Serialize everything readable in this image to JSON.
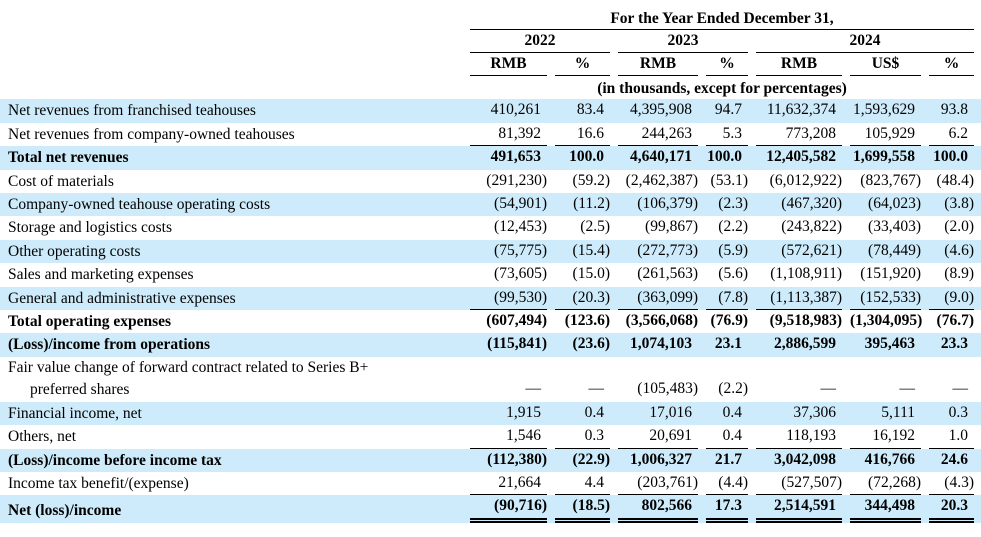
{
  "header": {
    "title": "For the Year Ended December 31,",
    "note": "(in thousands, except for percentages)",
    "year_groups": [
      {
        "label": "2022",
        "columns": [
          "RMB",
          "%"
        ]
      },
      {
        "label": "2023",
        "columns": [
          "RMB",
          "%"
        ]
      },
      {
        "label": "2024",
        "columns": [
          "RMB",
          "US$",
          "%"
        ]
      }
    ],
    "column_headers": [
      "RMB",
      "%",
      "RMB",
      "%",
      "RMB",
      "US$",
      "%"
    ]
  },
  "colors": {
    "stripe_blue": "#CDEBFA",
    "text": "#000000",
    "rule": "#000000"
  },
  "table": {
    "rows": [
      {
        "label": "Net revenues from franchised teahouses",
        "bold": false,
        "stripe": true,
        "underline": "none",
        "values": [
          "410,261",
          "83.4",
          "4,395,908",
          "94.7",
          "11,632,374",
          "1,593,629",
          "93.8"
        ]
      },
      {
        "label": "Net revenues from company-owned teahouses",
        "bold": false,
        "stripe": false,
        "underline": "single",
        "values": [
          "81,392",
          "16.6",
          "244,263",
          "5.3",
          "773,208",
          "105,929",
          "6.2"
        ]
      },
      {
        "label": "Total net revenues",
        "bold": true,
        "stripe": true,
        "underline": "none",
        "values": [
          "491,653",
          "100.0",
          "4,640,171",
          "100.0",
          "12,405,582",
          "1,699,558",
          "100.0"
        ]
      },
      {
        "label": "Cost of materials",
        "bold": false,
        "stripe": false,
        "underline": "none",
        "values": [
          "(291,230)",
          "(59.2)",
          "(2,462,387)",
          "(53.1)",
          "(6,012,922)",
          "(823,767)",
          "(48.4)"
        ]
      },
      {
        "label": "Company-owned teahouse operating costs",
        "bold": false,
        "stripe": true,
        "underline": "none",
        "values": [
          "(54,901)",
          "(11.2)",
          "(106,379)",
          "(2.3)",
          "(467,320)",
          "(64,023)",
          "(3.8)"
        ]
      },
      {
        "label": "Storage and logistics costs",
        "bold": false,
        "stripe": false,
        "underline": "none",
        "values": [
          "(12,453)",
          "(2.5)",
          "(99,867)",
          "(2.2)",
          "(243,822)",
          "(33,403)",
          "(2.0)"
        ]
      },
      {
        "label": "Other operating costs",
        "bold": false,
        "stripe": true,
        "underline": "none",
        "values": [
          "(75,775)",
          "(15.4)",
          "(272,773)",
          "(5.9)",
          "(572,621)",
          "(78,449)",
          "(4.6)"
        ]
      },
      {
        "label": "Sales and marketing expenses",
        "bold": false,
        "stripe": false,
        "underline": "none",
        "values": [
          "(73,605)",
          "(15.0)",
          "(261,563)",
          "(5.6)",
          "(1,108,911)",
          "(151,920)",
          "(8.9)"
        ]
      },
      {
        "label": "General and administrative expenses",
        "bold": false,
        "stripe": true,
        "underline": "single",
        "values": [
          "(99,530)",
          "(20.3)",
          "(363,099)",
          "(7.8)",
          "(1,113,387)",
          "(152,533)",
          "(9.0)"
        ]
      },
      {
        "label": "Total operating expenses",
        "bold": true,
        "stripe": false,
        "underline": "none",
        "values": [
          "(607,494)",
          "(123.6)",
          "(3,566,068)",
          "(76.9)",
          "(9,518,983)",
          "(1,304,095)",
          "(76.7)"
        ]
      },
      {
        "label": "(Loss)/income from operations",
        "bold": true,
        "stripe": true,
        "underline": "none",
        "values": [
          "(115,841)",
          "(23.6)",
          "1,074,103",
          "23.1",
          "2,886,599",
          "395,463",
          "23.3"
        ]
      },
      {
        "label": "Fair value change of forward contract related to Series B+",
        "label2": "preferred shares",
        "bold": false,
        "stripe": false,
        "underline": "none",
        "values": [
          "—",
          "—",
          "(105,483)",
          "(2.2)",
          "—",
          "—",
          "—"
        ]
      },
      {
        "label": "Financial income, net",
        "bold": false,
        "stripe": true,
        "underline": "none",
        "values": [
          "1,915",
          "0.4",
          "17,016",
          "0.4",
          "37,306",
          "5,111",
          "0.3"
        ]
      },
      {
        "label": "Others, net",
        "bold": false,
        "stripe": false,
        "underline": "single",
        "values": [
          "1,546",
          "0.3",
          "20,691",
          "0.4",
          "118,193",
          "16,192",
          "1.0"
        ]
      },
      {
        "label": "(Loss)/income before income tax",
        "bold": true,
        "stripe": true,
        "underline": "none",
        "values": [
          "(112,380)",
          "(22.9)",
          "1,006,327",
          "21.7",
          "3,042,098",
          "416,766",
          "24.6"
        ]
      },
      {
        "label": "Income tax benefit/(expense)",
        "bold": false,
        "stripe": false,
        "underline": "single",
        "values": [
          "21,664",
          "4.4",
          "(203,761)",
          "(4.4)",
          "(527,507)",
          "(72,268)",
          "(4.3)"
        ]
      },
      {
        "label": "Net (loss)/income",
        "bold": true,
        "stripe": true,
        "underline": "double",
        "values": [
          "(90,716)",
          "(18.5)",
          "802,566",
          "17.3",
          "2,514,591",
          "344,498",
          "20.3"
        ]
      }
    ]
  }
}
